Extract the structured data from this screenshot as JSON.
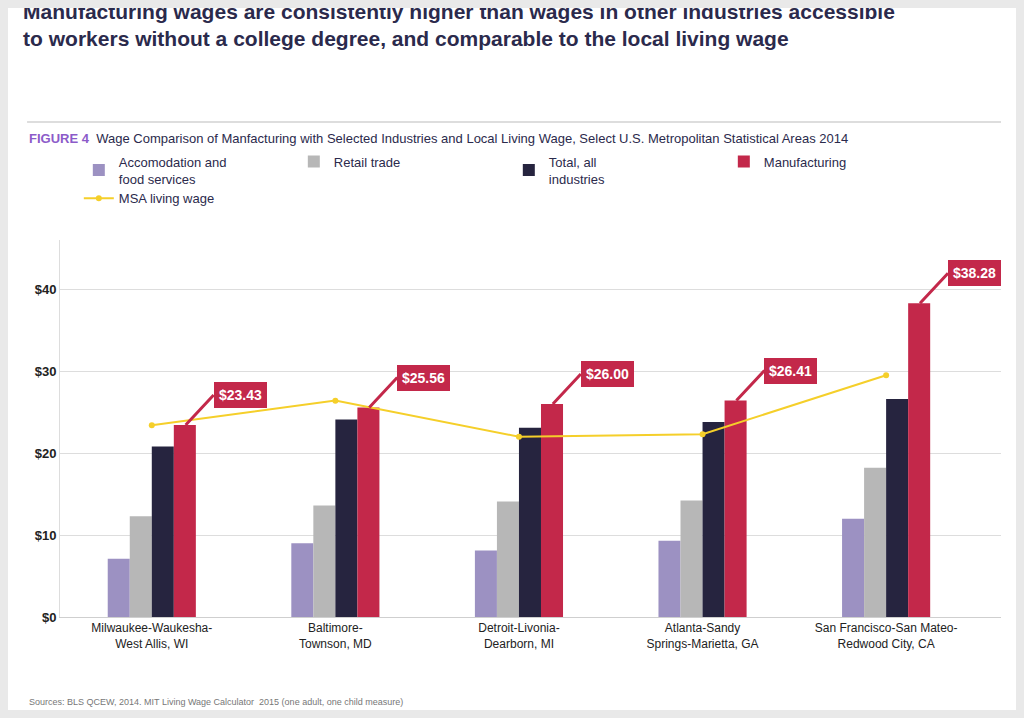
{
  "chart_data": {
    "type": "bar",
    "title": "Manufacturing wages are consistently higher than wages in other industries accessible\nto workers without a college degree, and comparable to the local living wage",
    "figure": "FIGURE 4",
    "subtitle": "Wage Comparison of Manfacturing with Selected Industries and Local Living Wage, Select U.S. Metropolitan Statistical Areas 2014",
    "source": "Sources: BLS QCEW, 2014. MIT Living Wage Calculator  2015 (one adult, one child measure)",
    "categories": [
      "Milwaukee-Waukesha-\nWest Allis, WI",
      "Baltimore-\nTownson, MD",
      "Detroit-Livonia-\nDearborn, MI",
      "Atlanta-Sandy\nSprings-Marietta, GA",
      "San Francisco-San Mateo-\nRedwood City, CA"
    ],
    "series": [
      {
        "name": "Accomodation and\nfood services",
        "type": "bar",
        "color": "#9c91c2",
        "values": [
          7.1,
          9.0,
          8.1,
          9.3,
          12.0
        ]
      },
      {
        "name": "Retail trade",
        "type": "bar",
        "color": "#b7b7b7",
        "values": [
          12.3,
          13.6,
          14.1,
          14.2,
          18.2
        ]
      },
      {
        "name": "Total, all\nindustries",
        "type": "bar",
        "color": "#26243f",
        "values": [
          20.8,
          24.1,
          23.1,
          23.8,
          26.6
        ]
      },
      {
        "name": "Manufacturing",
        "type": "bar",
        "color": "#c3284a",
        "values": [
          23.43,
          25.56,
          26.0,
          26.41,
          38.28
        ],
        "data_labels": true,
        "value_labels": [
          "$23.43",
          "$25.56",
          "$26.00",
          "$26.41",
          "$38.28"
        ]
      },
      {
        "name": "MSA living wage",
        "type": "line",
        "color": "#f5cf2a",
        "marker": "circle",
        "line_style": "solid",
        "values": [
          23.4,
          26.4,
          22.0,
          22.3,
          29.5
        ]
      }
    ],
    "ylim": [
      0,
      46
    ],
    "yticks": [
      {
        "value": 0,
        "label": "$0"
      },
      {
        "value": 10,
        "label": "$10"
      },
      {
        "value": 20,
        "label": "$20"
      },
      {
        "value": 30,
        "label": "$30"
      },
      {
        "value": 40,
        "label": "$40"
      }
    ],
    "grid": true,
    "legend": "top"
  }
}
